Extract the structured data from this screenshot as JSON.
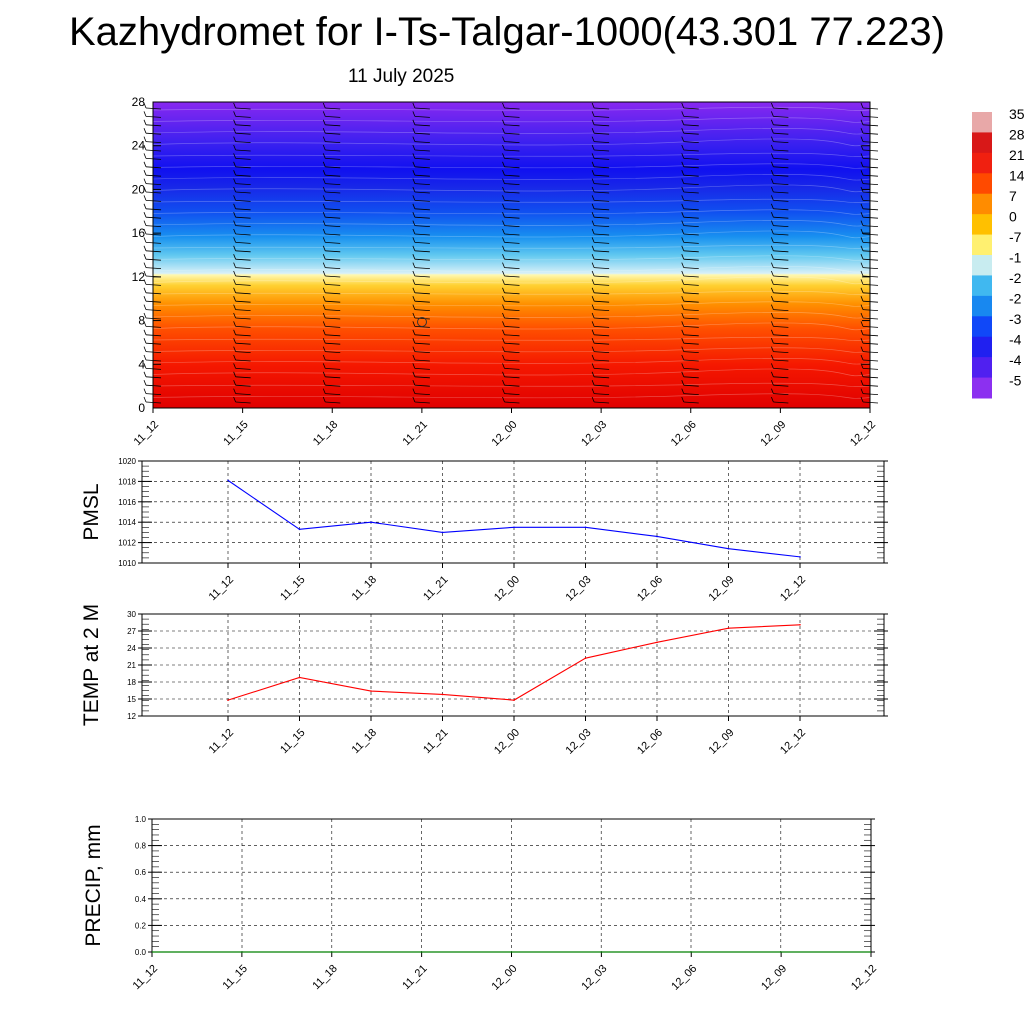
{
  "title": "Kazhydromet for I-Ts-Talgar-1000(43.301 77.223)",
  "subtitle": "11 July 2025",
  "chart_data": [
    {
      "type": "heatmap",
      "description_role": "cross-section",
      "x_ticks": [
        "11_12",
        "11_15",
        "11_18",
        "11_21",
        "12_00",
        "12_03",
        "12_06",
        "12_09",
        "12_12"
      ],
      "y_ticks": [
        "0",
        "4",
        "8",
        "12",
        "16",
        "20",
        "24",
        "28"
      ],
      "ylim": [
        0,
        28
      ],
      "colorbar_labels": [
        "35",
        "28",
        "21",
        "14",
        "7",
        "0",
        "-7",
        "-1",
        "-2",
        "-2",
        "-3",
        "-4",
        "-4",
        "-5"
      ],
      "colorbar_colors": [
        "#e8a8a8",
        "#d81818",
        "#f02010",
        "#ff4a00",
        "#ff8c00",
        "#ffc000",
        "#fff070",
        "#c8ecf0",
        "#40b8f0",
        "#1888f0",
        "#1048f8",
        "#2020f0",
        "#5020f0",
        "#8c30f0"
      ],
      "grid": false
    },
    {
      "type": "line",
      "ylabel": "PMSL",
      "x": [
        "11_12",
        "11_15",
        "11_18",
        "11_21",
        "12_00",
        "12_03",
        "12_06",
        "12_09",
        "12_12"
      ],
      "series": [
        {
          "values": [
            1018.1,
            1013.3,
            1014.0,
            1013.0,
            1013.5,
            1013.5,
            1012.6,
            1011.4,
            1010.6
          ],
          "color": "#0000ff"
        }
      ],
      "ylim": [
        1010,
        1020
      ],
      "y_ticks": [
        "1010",
        "1012",
        "1014",
        "1016",
        "1018",
        "1020"
      ],
      "grid": true
    },
    {
      "type": "line",
      "ylabel": "TEMP at 2 M",
      "x": [
        "11_12",
        "11_15",
        "11_18",
        "11_21",
        "12_00",
        "12_03",
        "12_06",
        "12_09",
        "12_12"
      ],
      "series": [
        {
          "values": [
            14.8,
            18.8,
            16.4,
            15.8,
            14.8,
            22.2,
            25.0,
            27.5,
            28.1
          ],
          "color": "#ff0000"
        }
      ],
      "ylim": [
        12,
        30
      ],
      "y_ticks": [
        "12",
        "15",
        "18",
        "21",
        "24",
        "27",
        "30"
      ],
      "grid": true
    },
    {
      "type": "line",
      "ylabel": "PRECIP, mm",
      "x": [
        "11_12",
        "11_15",
        "11_18",
        "11_21",
        "12_00",
        "12_03",
        "12_06",
        "12_09",
        "12_12"
      ],
      "series": [
        {
          "values": [
            0,
            0,
            0,
            0,
            0,
            0,
            0,
            0,
            0
          ],
          "color": "#008000"
        }
      ],
      "ylim": [
        0,
        1
      ],
      "y_ticks": [
        "0.0",
        "0.2",
        "0.4",
        "0.6",
        "0.8",
        "1.0"
      ],
      "grid": true
    }
  ]
}
